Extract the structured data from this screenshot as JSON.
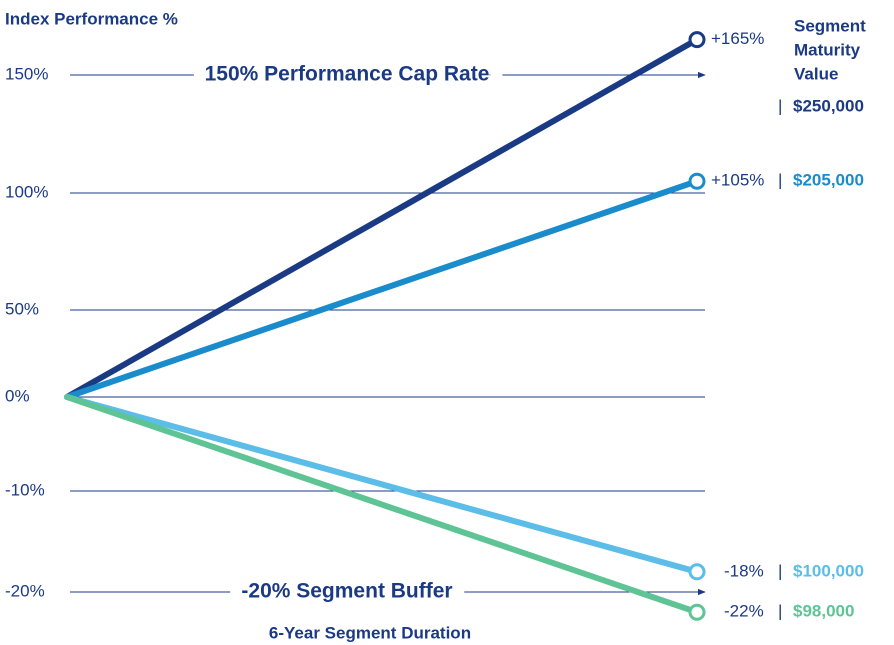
{
  "chart_data": {
    "type": "line",
    "y_label": "Index Performance %",
    "x_label": "6-Year Segment Duration",
    "side_title": [
      "Segment",
      "Maturity",
      "Value"
    ],
    "categories": [
      null,
      null
    ],
    "ylim": [
      -20,
      165
    ],
    "yticks": [
      {
        "value": -20,
        "label": "-20%"
      },
      {
        "value": -10,
        "label": "-10%"
      },
      {
        "value": 0,
        "label": "0%"
      },
      {
        "value": 50,
        "label": "50%"
      },
      {
        "value": 100,
        "label": "100%"
      },
      {
        "value": 150,
        "label": "150%"
      }
    ],
    "grid": true,
    "reference_lines": [
      {
        "value": 150,
        "label": "150% Performance Cap Rate"
      },
      {
        "value": -20,
        "label": "-20% Segment Buffer"
      }
    ],
    "series": [
      {
        "color": "#1b3a84",
        "values": [
          0,
          165
        ],
        "value_labels": [
          null,
          "+165%"
        ],
        "maturity_value": "$250,000"
      },
      {
        "color": "#1a8ccc",
        "values": [
          0,
          105
        ],
        "value_labels": [
          null,
          "+105%"
        ],
        "maturity_value": "$205,000"
      },
      {
        "color": "#5bbde8",
        "values": [
          0,
          -18
        ],
        "value_labels": [
          null,
          "-18%"
        ],
        "maturity_value": "$100,000"
      },
      {
        "color": "#5fc495",
        "values": [
          0,
          -22
        ],
        "value_labels": [
          null,
          "-22%"
        ],
        "maturity_value": "$98,000"
      }
    ]
  }
}
